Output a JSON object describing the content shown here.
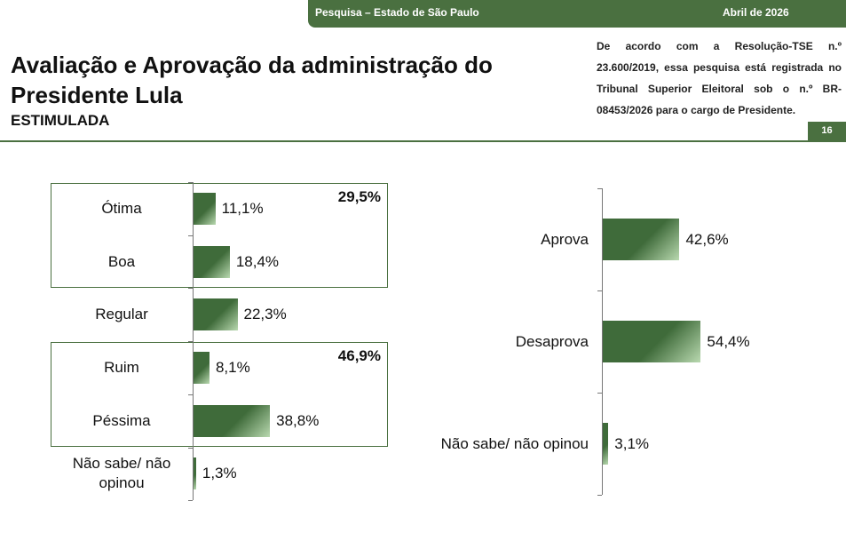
{
  "header": {
    "left": "Pesquisa – Estado de São Paulo",
    "right": "Abril de 2026"
  },
  "title": "Avaliação e Aprovação da administração do Presidente Lula",
  "subtitle": "ESTIMULADA",
  "note": "De acordo com a Resolução-TSE n.º 23.600/2019, essa pesquisa está registrada no Tribunal Superior Eleitoral sob o n.º BR-08453/2026 para o cargo de Presidente.",
  "page": "16",
  "chart_data": [
    {
      "type": "bar",
      "orientation": "horizontal",
      "color": "#3f6b3a",
      "categories": [
        "Ótima",
        "Boa",
        "Regular",
        "Ruim",
        "Péssima",
        "Não sabe/ não opinou"
      ],
      "values": [
        11.1,
        18.4,
        22.3,
        8.1,
        38.8,
        1.3
      ],
      "value_labels": [
        "11,1%",
        "18,4%",
        "22,3%",
        "8,1%",
        "38,8%",
        "1,3%"
      ],
      "annotations": [
        "29,5%",
        "46,9%"
      ]
    },
    {
      "type": "bar",
      "orientation": "horizontal",
      "color": "#3f6b3a",
      "categories": [
        "Aprova",
        "Desaprova",
        "Não sabe/ não opinou"
      ],
      "values": [
        42.6,
        54.4,
        3.1
      ],
      "value_labels": [
        "42,6%",
        "54,4%",
        "3,1%"
      ]
    }
  ]
}
